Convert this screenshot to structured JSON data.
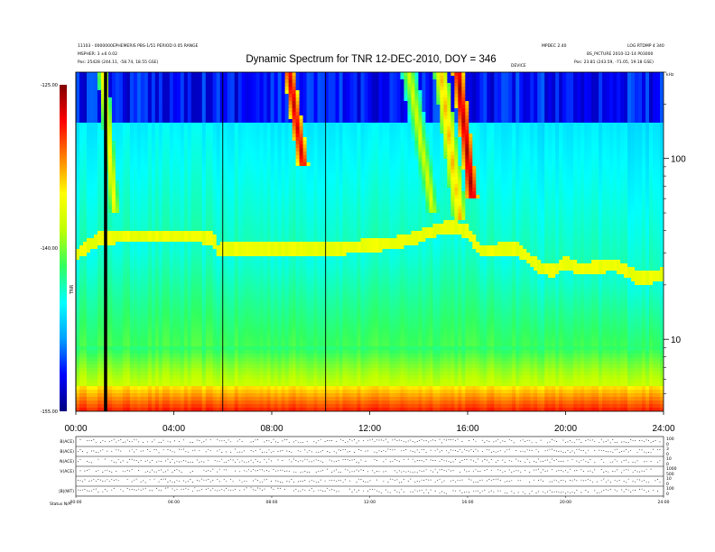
{
  "header": {
    "left_lines": [
      "11103 - 0000000EPHEMERIS PBS-1/51 PERIOD 0.05 RANGE",
      "MSPHER: 3 ±6 0.02",
      "Pos:   25428 (244.11, -58.74, 18.55 GSE)"
    ],
    "right_lines": [
      "MPDEC 2.40",
      "BS_PICTURE 2010-12-14 P03000",
      "Pos:   23.81 (243.59, -71.05, 19.18 GSE)"
    ],
    "far_right": "LOG RTDMP 4 340",
    "mid_note": "DEVICE",
    "khz_label": "kHz"
  },
  "chart_data": {
    "type": "heatmap",
    "title": "Dynamic Spectrum for TNR 12-DEC-2010, DOY = 346",
    "xlabel": "",
    "ylabel": "",
    "x_ticks": [
      "00:00",
      "04:00",
      "08:00",
      "12:00",
      "16:00",
      "20:00",
      "24:00"
    ],
    "xlim_hours": [
      0,
      24
    ],
    "y_scale": "log",
    "ylim_khz": [
      4,
      300
    ],
    "y_ticks": [
      10,
      100
    ],
    "colorbar": {
      "label": "TNR",
      "ticks": [
        -125.0,
        -140.0,
        -155.0
      ],
      "tick_labels": [
        "-125.00",
        "-140.00",
        "-155.00"
      ],
      "range": [
        -155,
        -125
      ],
      "colors": [
        "#000080",
        "#0000ff",
        "#00a0ff",
        "#00ffff",
        "#30ff60",
        "#c0ff00",
        "#ffff00",
        "#ff8000",
        "#ff0000",
        "#800000"
      ]
    },
    "features": {
      "plasma_line_khz": [
        [
          0.0,
          28
        ],
        [
          0.5,
          32
        ],
        [
          1.0,
          35
        ],
        [
          2.0,
          36
        ],
        [
          3.0,
          36
        ],
        [
          4.0,
          36
        ],
        [
          5.0,
          36
        ],
        [
          5.6,
          35
        ],
        [
          5.8,
          30
        ],
        [
          6.2,
          31
        ],
        [
          7.0,
          31
        ],
        [
          8.0,
          31
        ],
        [
          9.0,
          31
        ],
        [
          10.0,
          31
        ],
        [
          11.0,
          31
        ],
        [
          12.0,
          32
        ],
        [
          13.0,
          33
        ],
        [
          13.8,
          35
        ],
        [
          14.5,
          38
        ],
        [
          15.0,
          40
        ],
        [
          15.5,
          40
        ],
        [
          16.0,
          38
        ],
        [
          16.5,
          30
        ],
        [
          17.0,
          30
        ],
        [
          18.0,
          31
        ],
        [
          18.5,
          27
        ],
        [
          19.0,
          24
        ],
        [
          19.5,
          23
        ],
        [
          20.0,
          26
        ],
        [
          20.5,
          24
        ],
        [
          21.0,
          24
        ],
        [
          22.0,
          25
        ],
        [
          22.5,
          23
        ],
        [
          23.0,
          21
        ],
        [
          24.0,
          22
        ]
      ],
      "type3_bursts": [
        {
          "t_start": 1.1,
          "t_end": 1.6,
          "f_top": 300,
          "f_bottom": 50,
          "level": -135
        },
        {
          "t_start": 8.7,
          "t_end": 9.3,
          "f_top": 300,
          "f_bottom": 90,
          "level": -127
        },
        {
          "t_start": 13.6,
          "t_end": 14.6,
          "f_top": 300,
          "f_bottom": 50,
          "level": -137
        },
        {
          "t_start": 14.9,
          "t_end": 15.7,
          "f_top": 300,
          "f_bottom": 45,
          "level": -133
        },
        {
          "t_start": 15.6,
          "t_end": 16.2,
          "f_top": 300,
          "f_bottom": 60,
          "level": -126
        }
      ],
      "vertical_lines_hours": [
        0.0,
        6.0,
        10.2
      ],
      "data_gap_hours": [
        1.15,
        1.28
      ]
    }
  },
  "lower_panels": {
    "labels": [
      "B(ACE)",
      "B(ACE)",
      "N(ACE)",
      "V(ACE)",
      "",
      "|B|(WT)"
    ],
    "right_ticks": [
      [
        "100",
        "0"
      ],
      [
        "3",
        "0"
      ],
      [
        "10",
        "0"
      ],
      [
        "1000",
        "500"
      ],
      [
        "10",
        "0"
      ],
      [
        "100",
        "0"
      ]
    ],
    "x_ticks": [
      "00:00",
      "04:00",
      "08:00",
      "12:00",
      "16:00",
      "20:00",
      "24:00"
    ],
    "footer": "Status  N/A"
  }
}
